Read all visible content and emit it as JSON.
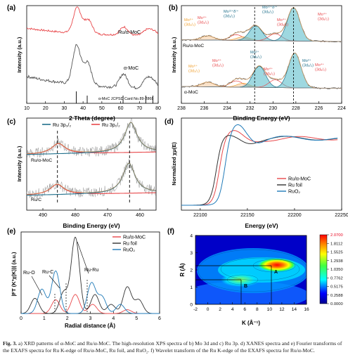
{
  "caption": {
    "label": "Fig. 3.",
    "text": "a) XRD patterns of α-MoC and Ru/α-MoC. The high-resolution XPS spectra of b) Mo 3d and c) Ru 3p. d) XANES spectra and e) Fourier transforms of the EXAFS spectra for Ru K-edge of Ru/α-MoC, Ru foil, and RuO₂. f) Wavelet transform of the Ru K-edge of the EXAFS spectra for Ru/α-MoC."
  },
  "colors": {
    "red": "#e8484b",
    "gray": "#555555",
    "teal": "#1f6f8b",
    "orange": "#f0a030",
    "cyan_fill": "#4fb8c6",
    "peach_fill": "#f4c89a",
    "env": "#d2a068",
    "navy": "#1f3a8a",
    "ru_foil": "#333333",
    "ruo2": "#1f7ab8"
  },
  "chart_data": [
    {
      "panel": "(a)",
      "type": "line",
      "xlabel": "2 Theta (degree)",
      "ylabel": "Intensity (a.u.)",
      "xlim": [
        10,
        80
      ],
      "xticks": [
        10,
        20,
        30,
        40,
        50,
        60,
        70,
        80
      ],
      "series": [
        {
          "name": "Ru/α-MoC",
          "color": "#e8484b",
          "peaks": [
            [
              36.9,
              1.0
            ],
            [
              42.7,
              0.55
            ],
            [
              61.8,
              0.32
            ],
            [
              74.1,
              0.22
            ],
            [
              77.8,
              0.16
            ]
          ],
          "baseline": 0.28
        },
        {
          "name": "α-MoC",
          "color": "#555555",
          "peaks": [
            [
              36.6,
              1.0
            ],
            [
              42.3,
              0.58
            ],
            [
              61.5,
              0.35
            ],
            [
              73.9,
              0.24
            ],
            [
              77.5,
              0.18
            ]
          ],
          "baseline": 0.3
        }
      ],
      "reference": {
        "label": "α-MoC JCPSD Card No.89-2868",
        "positions": [
          36.4,
          42.2,
          61.3,
          73.4,
          77.2
        ]
      }
    },
    {
      "panel": "(b)",
      "type": "line",
      "xlabel": "Binding Energy (eV)",
      "ylabel": "Intensity (a.u.)",
      "xlim": [
        238,
        224
      ],
      "xticks": [
        238,
        236,
        234,
        232,
        230,
        228,
        226,
        224
      ],
      "reference_lines": [
        231.6,
        228.2
      ],
      "traces": [
        "Ru/α-MoC",
        "α-MoC"
      ],
      "components": [
        {
          "label": "Mo⁶⁺",
          "sub": "(3d₃/₂)",
          "center": 235.7,
          "color": "#f0a030"
        },
        {
          "label": "Mo⁴⁺",
          "sub": "(3d₃/₂)",
          "center": 233.2,
          "color": "#e8484b"
        },
        {
          "label": "Mo⁽²⁺δ⁾⁺",
          "sub": "(3d₃/₂)",
          "center": 231.6,
          "color": "#1f6f8b"
        },
        {
          "label": "Mo⁽²⁺δ⁾⁺",
          "sub": "(3d₅/₂)",
          "center": 228.3,
          "color": "#1f6f8b"
        },
        {
          "label": "Mo⁴⁺",
          "sub": "(3d₅/₂)",
          "center": 229.8,
          "color": "#e8484b"
        },
        {
          "label": "Mo⁶⁺",
          "sub": "(3d₅/₂)",
          "center": 232.6,
          "color": "#f0a030"
        },
        {
          "label": "Mo²⁺",
          "sub": "(3d₃/₂)",
          "center": 230.8,
          "color": "#1f6f8b"
        },
        {
          "label": "Mo²⁺",
          "sub": "(3d₅/₂)",
          "center": 228.0,
          "color": "#1f6f8b"
        }
      ]
    },
    {
      "panel": "(c)",
      "type": "line",
      "xlabel": "Binding Energy (eV)",
      "ylabel": "Intensity (a.u.)",
      "xlim": [
        495,
        455
      ],
      "xticks": [
        490,
        480,
        470,
        460
      ],
      "legend": [
        {
          "name": "Ru 3p₃/₂",
          "color": "#1f6f8b"
        },
        {
          "name": "Ru 3p₁/₂",
          "color": "#e8484b"
        }
      ],
      "reference_lines": [
        485.5,
        463.2
      ],
      "traces": [
        {
          "name": "Ru/α-MoC",
          "peaks": [
            [
              485.2,
              0.55
            ],
            [
              462.8,
              1.0
            ]
          ]
        },
        {
          "name": "Ru/C",
          "peaks": [
            [
              485.6,
              0.55
            ],
            [
              463.4,
              1.0
            ]
          ]
        }
      ]
    },
    {
      "panel": "(d)",
      "type": "line",
      "xlabel": "Energy (eV)",
      "ylabel": "Normalized χμ(E)",
      "xlim": [
        22080,
        22250
      ],
      "xticks": [
        22100,
        22150,
        22200,
        22250
      ],
      "series": [
        {
          "name": "Ru/α-MoC",
          "color": "#e8484b",
          "edge": 22120,
          "white_line": 1.08
        },
        {
          "name": "Ru foil",
          "color": "#333333",
          "edge": 22117,
          "white_line": 1.02
        },
        {
          "name": "RuO₂",
          "color": "#1f7ab8",
          "edge": 22126,
          "white_line": 1.23
        }
      ]
    },
    {
      "panel": "(e)",
      "type": "line",
      "xlabel": "Radial distance (Å)",
      "ylabel": "|FT (K³χ(K))| (a.u.)",
      "xlim": [
        0,
        6
      ],
      "xticks": [
        0,
        1,
        2,
        3,
        4,
        5,
        6
      ],
      "series": [
        {
          "name": "Ru/α-MoC",
          "color": "#e8484b",
          "peaks": [
            [
              1.5,
              0.18
            ],
            [
              2.35,
              0.25
            ],
            [
              3.1,
              0.12
            ],
            [
              4.6,
              0.05
            ]
          ]
        },
        {
          "name": "Ru foil",
          "color": "#333333",
          "peaks": [
            [
              0.6,
              0.2
            ],
            [
              1.85,
              0.28
            ],
            [
              2.35,
              1.0
            ],
            [
              3.2,
              0.25
            ],
            [
              3.9,
              0.12
            ],
            [
              4.6,
              0.35
            ],
            [
              5.1,
              0.18
            ]
          ]
        },
        {
          "name": "RuO₂",
          "color": "#1f7ab8",
          "peaks": [
            [
              0.9,
              0.32
            ],
            [
              1.5,
              0.56
            ],
            [
              3.05,
              0.4
            ],
            [
              3.5,
              0.22
            ],
            [
              4.3,
              0.12
            ]
          ]
        }
      ],
      "annotations": [
        "Ru-O",
        "Ru-C",
        "Ru-Ru"
      ]
    },
    {
      "panel": "(f)",
      "type": "heatmap",
      "xlabel": "K (Å⁻¹)",
      "ylabel": "R (Å)",
      "xlim": [
        -2,
        16
      ],
      "xticks": [
        -2,
        0,
        2,
        4,
        6,
        8,
        10,
        12,
        14,
        16
      ],
      "ylim": [
        0,
        4
      ],
      "yticks": [
        0,
        1,
        2,
        3,
        4
      ],
      "colorbar": {
        "min": 0,
        "max": 2.07,
        "ticks": [
          "2.0700",
          "1.8112",
          "1.5525",
          "1.2938",
          "1.0350",
          "0.7762",
          "0.5175",
          "0.2588",
          "0.0000"
        ]
      },
      "features": [
        {
          "label": "A",
          "k": 10.2,
          "r": 2.3,
          "intensity": 2.07
        },
        {
          "label": "B",
          "k": 5.2,
          "r": 1.55,
          "intensity": 0.85
        }
      ]
    }
  ]
}
